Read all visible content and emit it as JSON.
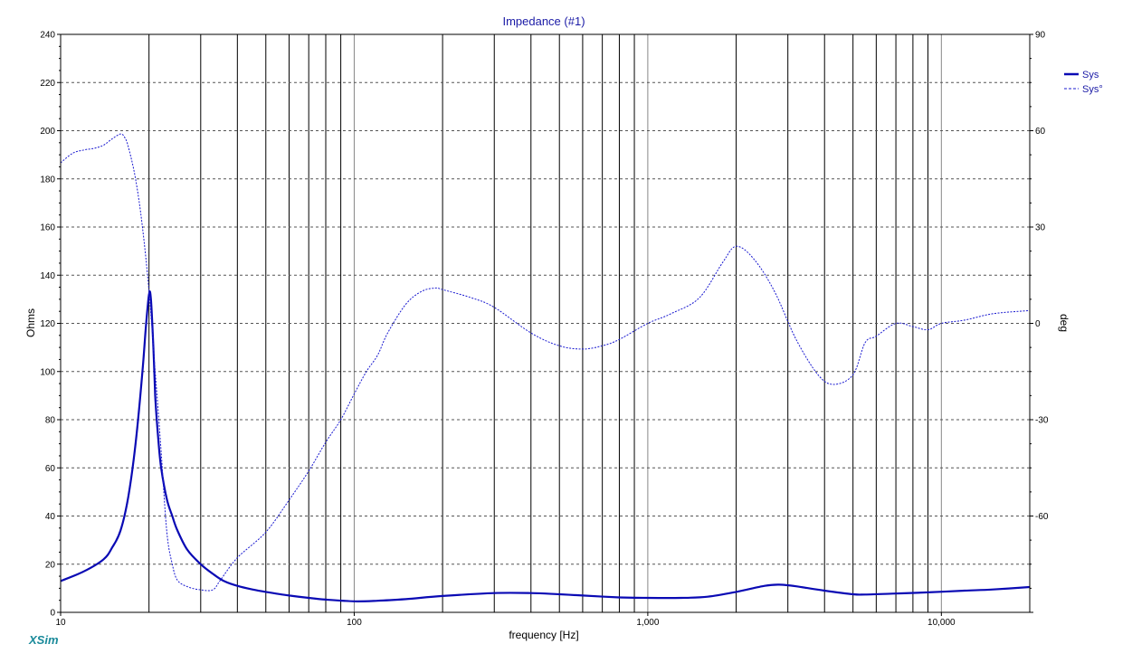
{
  "chart_data": {
    "type": "line",
    "title": "Impedance (#1)",
    "xlabel": "frequency [Hz]",
    "ylabel": "Ohms",
    "y2label": "deg",
    "x_scale": "log",
    "xlim": [
      10,
      20000
    ],
    "ylim": [
      0,
      240
    ],
    "y2lim": [
      -90,
      90
    ],
    "x_ticks": [
      10,
      100,
      1000,
      10000
    ],
    "x_tick_labels": [
      "10",
      "100",
      "1,000",
      "10,000"
    ],
    "y_ticks": [
      0,
      20,
      40,
      60,
      80,
      100,
      120,
      140,
      160,
      180,
      200,
      220,
      240
    ],
    "y2_ticks": [
      -90,
      -60,
      -30,
      0,
      30,
      60,
      90
    ],
    "y2_tick_labels": [
      "",
      "-60",
      "-30",
      "0",
      "30",
      "60",
      "90"
    ],
    "grid": true,
    "legend_position": "top-right",
    "series": [
      {
        "name": "Sys",
        "axis": "left",
        "style": "solid",
        "x": [
          10,
          12,
          14,
          15,
          16,
          17,
          18,
          19,
          19.5,
          20,
          20.3,
          20.7,
          21,
          21.5,
          22,
          23,
          24,
          25,
          27,
          30,
          33,
          36,
          40,
          45,
          50,
          60,
          70,
          80,
          100,
          120,
          150,
          200,
          300,
          400,
          500,
          600,
          800,
          1000,
          1300,
          1600,
          2000,
          2500,
          2800,
          3200,
          4000,
          5000,
          5500,
          7000,
          9000,
          12000,
          15000,
          20000
        ],
        "values": [
          13,
          17,
          22,
          27,
          34,
          48,
          70,
          100,
          118,
          132,
          130,
          110,
          90,
          72,
          60,
          47,
          40,
          34,
          26,
          20,
          16,
          13,
          11,
          9.5,
          8.5,
          7,
          6,
          5.3,
          4.6,
          4.8,
          5.5,
          6.8,
          8,
          8,
          7.5,
          7,
          6.2,
          6,
          6,
          6.5,
          8.5,
          11,
          11.5,
          10.8,
          9,
          7.5,
          7.4,
          7.8,
          8.3,
          9,
          9.5,
          10.5
        ]
      },
      {
        "name": "Sys°",
        "axis": "right",
        "style": "dashed",
        "x": [
          10,
          11,
          12,
          13,
          14,
          15,
          16,
          16.5,
          17,
          18,
          19,
          20,
          21,
          22,
          23,
          24,
          25,
          27,
          30,
          33,
          35,
          40,
          50,
          60,
          70,
          80,
          90,
          100,
          110,
          120,
          130,
          150,
          170,
          190,
          200,
          250,
          300,
          400,
          500,
          600,
          700,
          800,
          1000,
          1200,
          1500,
          1800,
          2000,
          2300,
          2700,
          3200,
          3800,
          4300,
          5000,
          5500,
          6000,
          7000,
          8000,
          9000,
          10000,
          12000,
          15000,
          20000
        ],
        "values": [
          50,
          53,
          54,
          54.5,
          55.5,
          57.5,
          59,
          58,
          55,
          45,
          30,
          10,
          -15,
          -40,
          -65,
          -75,
          -80,
          -82,
          -83,
          -83,
          -80,
          -73,
          -65,
          -55,
          -46,
          -37,
          -30,
          -22,
          -15,
          -10,
          -3,
          6,
          10,
          11,
          10.5,
          8,
          5,
          -3,
          -7,
          -8,
          -7,
          -5,
          0,
          3,
          8,
          19,
          24,
          20,
          10,
          -5,
          -16,
          -19,
          -16,
          -6,
          -4,
          0,
          -1,
          -2,
          0,
          1,
          3,
          4
        ]
      }
    ]
  },
  "legend": {
    "items": [
      {
        "label": "Sys",
        "color": "#0a0ab4",
        "style": "solid"
      },
      {
        "label": "Sys°",
        "color": "#1a1ad0",
        "style": "dashed"
      }
    ]
  },
  "brand": "XSim",
  "colors": {
    "curve": "#0a0ab4",
    "grid": "#000000",
    "title": "#1a1aa6",
    "brand": "#1a8a9a"
  }
}
